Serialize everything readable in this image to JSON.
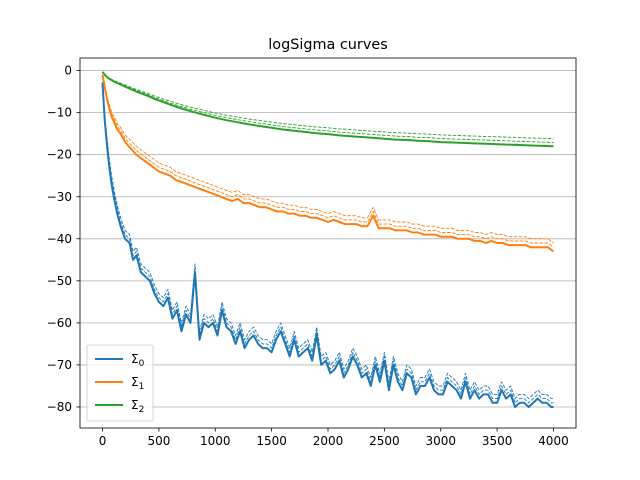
{
  "chart_data": {
    "type": "line",
    "title": "logSigma curves",
    "xlabel": "",
    "ylabel": "",
    "xlim": [
      -200,
      4200
    ],
    "ylim": [
      -85,
      3
    ],
    "xticks": [
      0,
      500,
      1000,
      1500,
      2000,
      2500,
      3000,
      3500,
      4000
    ],
    "yticks": [
      0,
      -10,
      -20,
      -30,
      -40,
      -50,
      -60,
      -70,
      -80
    ],
    "xtick_labels": [
      "0",
      "500",
      "1000",
      "1500",
      "2000",
      "2500",
      "3000",
      "3500",
      "4000"
    ],
    "ytick_labels": [
      "0",
      "−10",
      "−20",
      "−30",
      "−40",
      "−50",
      "−60",
      "−70",
      "−80"
    ],
    "grid": "horizontal",
    "legend": "lower-left",
    "series": [
      {
        "name": "Σ",
        "subscript": "0",
        "color": "#1f77b4",
        "x": [
          0,
          20,
          40,
          60,
          80,
          100,
          130,
          160,
          200,
          240,
          270,
          300,
          340,
          380,
          420,
          460,
          500,
          540,
          580,
          620,
          660,
          700,
          740,
          780,
          820,
          860,
          900,
          940,
          980,
          1020,
          1060,
          1100,
          1140,
          1180,
          1220,
          1260,
          1300,
          1340,
          1380,
          1420,
          1460,
          1500,
          1540,
          1580,
          1620,
          1660,
          1700,
          1740,
          1780,
          1820,
          1860,
          1900,
          1940,
          1980,
          2020,
          2060,
          2100,
          2140,
          2180,
          2220,
          2260,
          2300,
          2340,
          2380,
          2420,
          2460,
          2500,
          2540,
          2580,
          2620,
          2660,
          2700,
          2740,
          2780,
          2820,
          2860,
          2900,
          2940,
          2980,
          3020,
          3060,
          3100,
          3140,
          3180,
          3220,
          3260,
          3300,
          3340,
          3380,
          3420,
          3460,
          3500,
          3540,
          3580,
          3620,
          3660,
          3700,
          3740,
          3780,
          3820,
          3860,
          3900,
          3940,
          3980,
          4000
        ],
        "values": [
          -3,
          -12,
          -18,
          -23,
          -27,
          -30,
          -34,
          -37,
          -40,
          -41,
          -45,
          -44,
          -48,
          -49,
          -50,
          -53,
          -55,
          -56,
          -54,
          -59,
          -57,
          -62,
          -58,
          -60,
          -48,
          -64,
          -60,
          -61,
          -60,
          -63,
          -57,
          -61,
          -62,
          -65,
          -62,
          -66,
          -64,
          -63,
          -65,
          -66,
          -66,
          -67,
          -64,
          -62,
          -65,
          -68,
          -64,
          -68,
          -67,
          -66,
          -69,
          -63,
          -70,
          -69,
          -72,
          -71,
          -69,
          -73,
          -71,
          -68,
          -70,
          -73,
          -72,
          -75,
          -70,
          -74,
          -69,
          -76,
          -70,
          -74,
          -76,
          -72,
          -73,
          -77,
          -75,
          -75,
          -73,
          -76,
          -77,
          -77,
          -74,
          -75,
          -76,
          -78,
          -74,
          -78,
          -76,
          -78,
          -77,
          -77,
          -79,
          -79,
          -76,
          -78,
          -77,
          -80,
          -79,
          -79,
          -80,
          -79,
          -78,
          -79,
          -79,
          -80,
          -80
        ]
      },
      {
        "name": "Σ",
        "subscript": "1",
        "color": "#ff7f0e",
        "x": [
          0,
          20,
          40,
          60,
          80,
          100,
          130,
          160,
          200,
          250,
          300,
          350,
          400,
          450,
          500,
          550,
          600,
          650,
          700,
          750,
          800,
          850,
          900,
          950,
          1000,
          1050,
          1100,
          1150,
          1200,
          1250,
          1300,
          1350,
          1400,
          1450,
          1500,
          1550,
          1600,
          1650,
          1700,
          1750,
          1800,
          1850,
          1900,
          1950,
          2000,
          2050,
          2100,
          2150,
          2200,
          2250,
          2300,
          2350,
          2400,
          2450,
          2500,
          2550,
          2600,
          2650,
          2700,
          2750,
          2800,
          2850,
          2900,
          2950,
          3000,
          3050,
          3100,
          3150,
          3200,
          3250,
          3300,
          3350,
          3400,
          3450,
          3500,
          3550,
          3600,
          3650,
          3700,
          3750,
          3800,
          3850,
          3900,
          3950,
          4000
        ],
        "values": [
          -1,
          -4,
          -7,
          -9,
          -11,
          -12,
          -14,
          -15,
          -17,
          -18.5,
          -20,
          -21,
          -22,
          -23,
          -24,
          -24.5,
          -25,
          -26,
          -26.5,
          -27,
          -27.5,
          -28,
          -28.5,
          -29,
          -29.5,
          -30,
          -30.5,
          -31,
          -30.5,
          -31.5,
          -31.5,
          -32,
          -32.5,
          -32.5,
          -33,
          -33.5,
          -33.5,
          -34,
          -34,
          -34.5,
          -34.5,
          -35,
          -35,
          -35.5,
          -36,
          -35.5,
          -36,
          -36.5,
          -36.5,
          -36.5,
          -37,
          -37,
          -34.5,
          -37.5,
          -37.5,
          -37.5,
          -38,
          -38,
          -38,
          -38.5,
          -38.5,
          -39,
          -39,
          -39,
          -39.5,
          -39.5,
          -39.5,
          -40,
          -40,
          -40,
          -40.5,
          -40.5,
          -41,
          -40.5,
          -41,
          -41,
          -41.5,
          -41.5,
          -41.5,
          -41.5,
          -42,
          -42,
          -42,
          -42,
          -43
        ]
      },
      {
        "name": "Σ",
        "subscript": "2",
        "color": "#2ca02c",
        "x": [
          0,
          20,
          50,
          100,
          150,
          200,
          250,
          300,
          350,
          400,
          450,
          500,
          600,
          700,
          800,
          900,
          1000,
          1100,
          1200,
          1300,
          1400,
          1500,
          1600,
          1700,
          1800,
          1900,
          2000,
          2100,
          2200,
          2300,
          2400,
          2500,
          2600,
          2700,
          2800,
          2900,
          3000,
          3100,
          3200,
          3300,
          3400,
          3500,
          3600,
          3700,
          3800,
          3900,
          4000
        ],
        "values": [
          -0.3,
          -1,
          -1.8,
          -2.6,
          -3.2,
          -3.8,
          -4.4,
          -5,
          -5.5,
          -6,
          -6.6,
          -7.1,
          -8.1,
          -9,
          -9.8,
          -10.5,
          -11.2,
          -11.8,
          -12.3,
          -12.8,
          -13.2,
          -13.6,
          -14,
          -14.3,
          -14.6,
          -14.9,
          -15.1,
          -15.4,
          -15.6,
          -15.8,
          -16,
          -16.2,
          -16.4,
          -16.5,
          -16.7,
          -16.8,
          -17,
          -17.1,
          -17.2,
          -17.3,
          -17.4,
          -17.5,
          -17.6,
          -17.7,
          -17.8,
          -17.9,
          -18
        ]
      }
    ]
  }
}
